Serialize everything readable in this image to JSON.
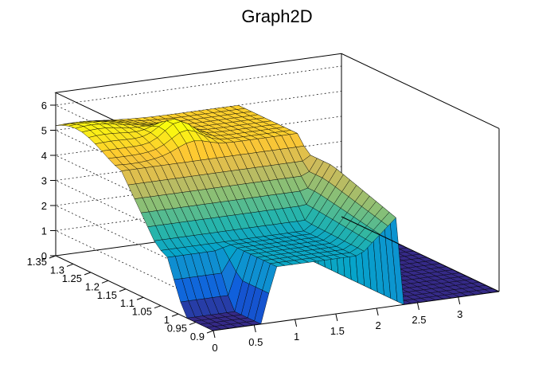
{
  "chart_data": {
    "type": "surface3d",
    "title": "Graph2D",
    "xlabel": "",
    "ylabel": "",
    "zlabel": "",
    "xlim": [
      0,
      3.5
    ],
    "ylim": [
      0.9,
      1.35
    ],
    "zlim": [
      0,
      6.5
    ],
    "x_ticks": [
      "0",
      "0.5",
      "1",
      "1.5",
      "2",
      "2.5",
      "3"
    ],
    "x_tick_values": [
      0,
      0.5,
      1,
      1.5,
      2,
      2.5,
      3
    ],
    "y_ticks": [
      "0.9",
      "0.95",
      "1",
      "1.05",
      "1.1",
      "1.15",
      "1.2",
      "1.25",
      "1.3",
      "1.35"
    ],
    "y_tick_values": [
      0.9,
      0.95,
      1,
      1.05,
      1.1,
      1.15,
      1.2,
      1.25,
      1.3,
      1.35
    ],
    "z_ticks": [
      "0",
      "1",
      "2",
      "3",
      "4",
      "5",
      "6"
    ],
    "z_tick_values": [
      0,
      1,
      2,
      3,
      4,
      5,
      6
    ],
    "grid": true,
    "colormap": [
      "#352a87",
      "#0f5cdd",
      "#1481d6",
      "#06a4ca",
      "#2eb7a4",
      "#87bf77",
      "#d1bb59",
      "#fec832",
      "#f9fb0e"
    ],
    "surface": {
      "description_of_shape": "plateau near z=5 at high y, step down to z~2.2 plateau at low y, drops to 0 beyond x~2.3 and within a notch at low y",
      "nx": 36,
      "ny": 24
    }
  }
}
